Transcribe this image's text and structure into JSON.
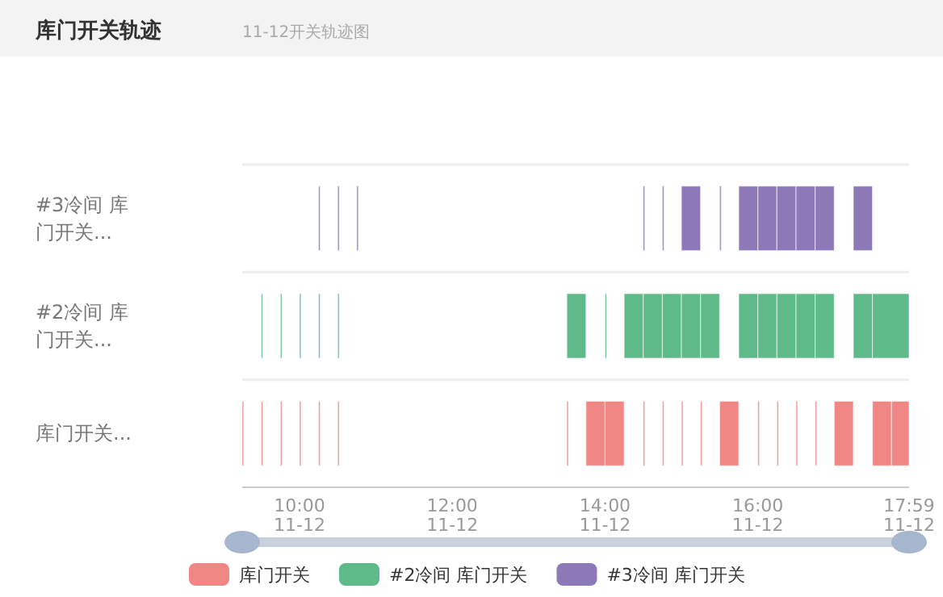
{
  "chart_data": {
    "type": "bar",
    "orientation": "horizontal",
    "title": "库门开关轨迹",
    "subtitle": "11-12开关轨迹图",
    "categories": [
      "#3冷间 库门开关...",
      "#2冷间 库门开关...",
      "库门开关..."
    ],
    "xlim": [
      9.25,
      17.98
    ],
    "xticks": [
      {
        "value": 10,
        "label": "10:00"
      },
      {
        "value": 12,
        "label": "12:00"
      },
      {
        "value": 14,
        "label": "14:00"
      },
      {
        "value": 16,
        "label": "16:00"
      },
      {
        "value": 17.98,
        "label": "17:59"
      }
    ],
    "annotations": [
      "11-12",
      "11-12",
      "11-12",
      "11-12",
      "11-12"
    ],
    "grid": "y",
    "legend": "bottom",
    "series": [
      {
        "name": "库门开关",
        "color": "#f08784",
        "values": [
          null,
          null,
          0.02
        ],
        "base": [
          null,
          null,
          9.25
        ]
      },
      {
        "color": "#f08784",
        "values": [
          null,
          null,
          0.02
        ],
        "base": [
          null,
          null,
          9.5
        ]
      },
      {
        "color": "#f08784",
        "values": [
          null,
          null,
          0.02
        ],
        "base": [
          null,
          null,
          9.75
        ]
      },
      {
        "color": "#f08784",
        "values": [
          null,
          null,
          0.02
        ],
        "base": [
          null,
          null,
          10
        ]
      },
      {
        "color": "#f08784",
        "values": [
          null,
          null,
          0.02
        ],
        "base": [
          null,
          null,
          10.25
        ]
      },
      {
        "color": "#f08784",
        "values": [
          null,
          null,
          0.02
        ],
        "base": [
          null,
          null,
          10.5
        ]
      },
      {
        "color": "#f08784",
        "values": [
          null,
          null,
          0.02
        ],
        "base": [
          null,
          null,
          13.5
        ]
      },
      {
        "color": "#f08784",
        "values": [
          null,
          null,
          0.25
        ],
        "base": [
          null,
          null,
          13.75
        ]
      },
      {
        "color": "#f08784",
        "values": [
          null,
          null,
          0.25
        ],
        "base": [
          null,
          null,
          14
        ]
      },
      {
        "color": "#f08784",
        "values": [
          null,
          null,
          0.02
        ],
        "base": [
          null,
          null,
          14.5
        ]
      },
      {
        "color": "#f08784",
        "values": [
          null,
          null,
          0.02
        ],
        "base": [
          null,
          null,
          14.75
        ]
      },
      {
        "color": "#f08784",
        "values": [
          null,
          null,
          0.02
        ],
        "base": [
          null,
          null,
          15
        ]
      },
      {
        "color": "#f08784",
        "values": [
          null,
          null,
          0.02
        ],
        "base": [
          null,
          null,
          15.25
        ]
      },
      {
        "color": "#f08784",
        "values": [
          null,
          null,
          0.25
        ],
        "base": [
          null,
          null,
          15.5
        ]
      },
      {
        "color": "#f08784",
        "values": [
          null,
          null,
          0.02
        ],
        "base": [
          null,
          null,
          16
        ]
      },
      {
        "color": "#f08784",
        "values": [
          null,
          null,
          0.02
        ],
        "base": [
          null,
          null,
          16.25
        ]
      },
      {
        "color": "#f08784",
        "values": [
          null,
          null,
          0.02
        ],
        "base": [
          null,
          null,
          16.5
        ]
      },
      {
        "color": "#f08784",
        "values": [
          null,
          null,
          0.02
        ],
        "base": [
          null,
          null,
          16.75
        ]
      },
      {
        "color": "#f08784",
        "values": [
          null,
          null,
          0.25
        ],
        "base": [
          null,
          null,
          17
        ]
      },
      {
        "color": "#f08784",
        "values": [
          null,
          null,
          0.25
        ],
        "base": [
          null,
          null,
          17.5
        ]
      },
      {
        "color": "#f08784",
        "values": [
          null,
          null,
          0.23
        ],
        "base": [
          null,
          null,
          17.75
        ]
      },
      {
        "name": "#2冷间 库门开关",
        "color": "#5fba89",
        "values": [
          null,
          0.02,
          null
        ],
        "base": [
          null,
          9.5,
          null
        ]
      },
      {
        "color": "#5fba89",
        "values": [
          null,
          0.02,
          null
        ],
        "base": [
          null,
          9.75,
          null
        ]
      },
      {
        "color": "#5fba89",
        "values": [
          null,
          0.02,
          null
        ],
        "base": [
          null,
          10,
          null
        ]
      },
      {
        "color": "#5fba89",
        "values": [
          null,
          0.02,
          null
        ],
        "base": [
          null,
          10.25,
          null
        ]
      },
      {
        "color": "#5fba89",
        "values": [
          null,
          0.02,
          null
        ],
        "base": [
          null,
          10.5,
          null
        ]
      },
      {
        "color": "#5fba89",
        "values": [
          null,
          0.25,
          null
        ],
        "base": [
          null,
          13.5,
          null
        ]
      },
      {
        "color": "#5fba89",
        "values": [
          null,
          0.02,
          null
        ],
        "base": [
          null,
          14,
          null
        ]
      },
      {
        "color": "#5fba89",
        "values": [
          null,
          0.25,
          null
        ],
        "base": [
          null,
          14.25,
          null
        ]
      },
      {
        "color": "#5fba89",
        "values": [
          null,
          0.25,
          null
        ],
        "base": [
          null,
          14.5,
          null
        ]
      },
      {
        "color": "#5fba89",
        "values": [
          null,
          0.25,
          null
        ],
        "base": [
          null,
          14.75,
          null
        ]
      },
      {
        "color": "#5fba89",
        "values": [
          null,
          0.25,
          null
        ],
        "base": [
          null,
          15,
          null
        ]
      },
      {
        "color": "#5fba89",
        "values": [
          null,
          0.25,
          null
        ],
        "base": [
          null,
          15.25,
          null
        ]
      },
      {
        "color": "#5fba89",
        "values": [
          null,
          0.25,
          null
        ],
        "base": [
          null,
          15.75,
          null
        ]
      },
      {
        "color": "#5fba89",
        "values": [
          null,
          0.25,
          null
        ],
        "base": [
          null,
          16,
          null
        ]
      },
      {
        "color": "#5fba89",
        "values": [
          null,
          0.25,
          null
        ],
        "base": [
          null,
          16.25,
          null
        ]
      },
      {
        "color": "#5fba89",
        "values": [
          null,
          0.25,
          null
        ],
        "base": [
          null,
          16.5,
          null
        ]
      },
      {
        "color": "#5fba89",
        "values": [
          null,
          0.25,
          null
        ],
        "base": [
          null,
          16.75,
          null
        ]
      },
      {
        "color": "#5fba89",
        "values": [
          null,
          0.25,
          null
        ],
        "base": [
          null,
          17.25,
          null
        ]
      },
      {
        "color": "#5fba89",
        "values": [
          null,
          0.48,
          null
        ],
        "base": [
          null,
          17.5,
          null
        ]
      },
      {
        "name": "#3冷间 库门开关",
        "color": "#8d79b8",
        "values": [
          0.02,
          null,
          null
        ],
        "base": [
          10.25,
          null,
          null
        ]
      },
      {
        "color": "#8d79b8",
        "values": [
          0.02,
          null,
          null
        ],
        "base": [
          10.5,
          null,
          null
        ]
      },
      {
        "color": "#8d79b8",
        "values": [
          0.02,
          null,
          null
        ],
        "base": [
          10.75,
          null,
          null
        ]
      },
      {
        "color": "#8d79b8",
        "values": [
          0.02,
          null,
          null
        ],
        "base": [
          14.5,
          null,
          null
        ]
      },
      {
        "color": "#8d79b8",
        "values": [
          0.02,
          null,
          null
        ],
        "base": [
          14.75,
          null,
          null
        ]
      },
      {
        "color": "#8d79b8",
        "values": [
          0.25,
          null,
          null
        ],
        "base": [
          15,
          null,
          null
        ]
      },
      {
        "color": "#8d79b8",
        "values": [
          0.02,
          null,
          null
        ],
        "base": [
          15.5,
          null,
          null
        ]
      },
      {
        "color": "#8d79b8",
        "values": [
          0.25,
          null,
          null
        ],
        "base": [
          15.75,
          null,
          null
        ]
      },
      {
        "color": "#8d79b8",
        "values": [
          0.25,
          null,
          null
        ],
        "base": [
          16,
          null,
          null
        ]
      },
      {
        "color": "#8d79b8",
        "values": [
          0.25,
          null,
          null
        ],
        "base": [
          16.25,
          null,
          null
        ]
      },
      {
        "color": "#8d79b8",
        "values": [
          0.25,
          null,
          null
        ],
        "base": [
          16.5,
          null,
          null
        ]
      },
      {
        "color": "#8d79b8",
        "values": [
          0.25,
          null,
          null
        ],
        "base": [
          16.75,
          null,
          null
        ]
      },
      {
        "color": "#8d79b8",
        "values": [
          0.25,
          null,
          null
        ],
        "base": [
          17.25,
          null,
          null
        ]
      }
    ]
  }
}
